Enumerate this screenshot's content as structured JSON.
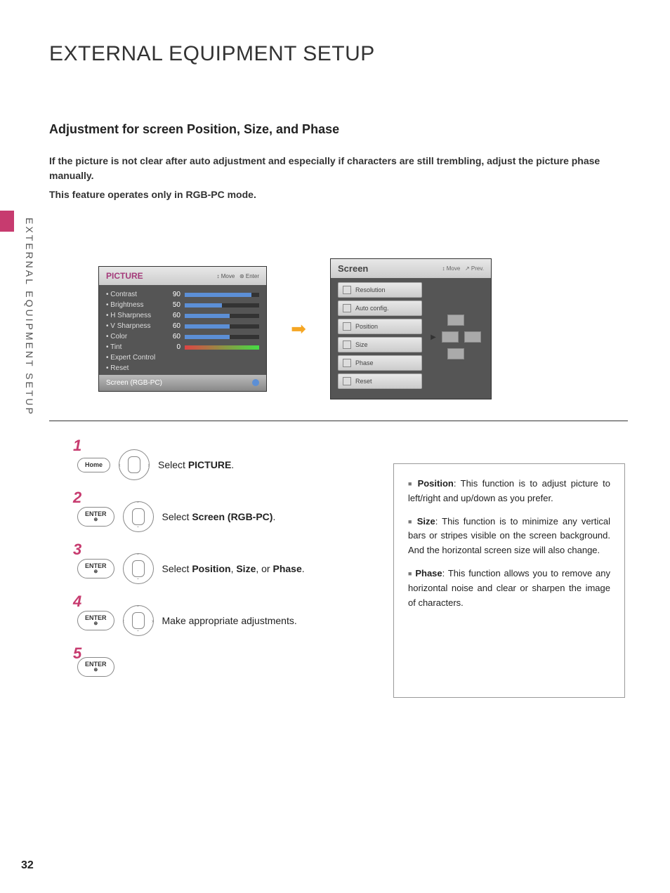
{
  "pageTitle": "EXTERNAL EQUIPMENT SETUP",
  "sideVertical": "EXTERNAL EQUIPMENT SETUP",
  "sectionTitle": "Adjustment for screen Position, Size, and Phase",
  "intro1": "If the picture is not clear after auto adjustment and especially if characters are still trembling, adjust the picture phase manually.",
  "intro2": "This feature operates only in RGB-PC mode.",
  "pictureMenu": {
    "title": "PICTURE",
    "ctrlMove": "Move",
    "ctrlEnter": "Enter",
    "rows": [
      {
        "label": "• Contrast",
        "value": "90",
        "pct": 90
      },
      {
        "label": "• Brightness",
        "value": "50",
        "pct": 50
      },
      {
        "label": "• H Sharpness",
        "value": "60",
        "pct": 60
      },
      {
        "label": "• V Sharpness",
        "value": "60",
        "pct": 60
      },
      {
        "label": "• Color",
        "value": "60",
        "pct": 60
      },
      {
        "label": "• Tint",
        "value": "0",
        "pct": 50,
        "tint": true
      },
      {
        "label": "• Expert Control",
        "value": "",
        "pct": null
      },
      {
        "label": "• Reset",
        "value": "",
        "pct": null
      }
    ],
    "footerLabel": "Screen (RGB-PC)"
  },
  "screenMenu": {
    "title": "Screen",
    "ctrlMove": "Move",
    "ctrlPrev": "Prev.",
    "items": [
      "Resolution",
      "Auto config.",
      "Position",
      "Size",
      "Phase",
      "Reset"
    ]
  },
  "steps": [
    {
      "num": "1",
      "btn": "Home",
      "btnSub": "",
      "dpad": "lr",
      "pre": "Select ",
      "bold": "PICTURE",
      "post": "."
    },
    {
      "num": "2",
      "btn": "ENTER",
      "btnSub": "⊛",
      "dpad": "ud",
      "pre": "Select ",
      "bold": "Screen (RGB-PC)",
      "post": "."
    },
    {
      "num": "3",
      "btn": "ENTER",
      "btnSub": "⊛",
      "dpad": "ud",
      "pre": "Select ",
      "bold": "Position",
      "mid": ", ",
      "bold2": "Size",
      "mid2": ", or ",
      "bold3": "Phase",
      "post": "."
    },
    {
      "num": "4",
      "btn": "ENTER",
      "btnSub": "⊛",
      "dpad": "all",
      "pre": "Make appropriate adjustments.",
      "bold": "",
      "post": ""
    },
    {
      "num": "5",
      "btn": "ENTER",
      "btnSub": "⊛",
      "dpad": "",
      "pre": "",
      "bold": "",
      "post": ""
    }
  ],
  "info": {
    "positionLabel": "Position",
    "position": ": This function is to adjust picture to left/right and up/down as you prefer.",
    "sizeLabel": "Size",
    "size": ": This function is to minimize any vertical bars or stripes visible on the screen background. And the horizontal screen size will also change.",
    "phaseLabel": "Phase",
    "phase": ": This function allows you to remove any horizontal noise and clear or sharpen the image of characters."
  },
  "pageNumber": "32",
  "colors": {
    "accent": "#c73b6f",
    "bar": "#5c8fd6"
  }
}
